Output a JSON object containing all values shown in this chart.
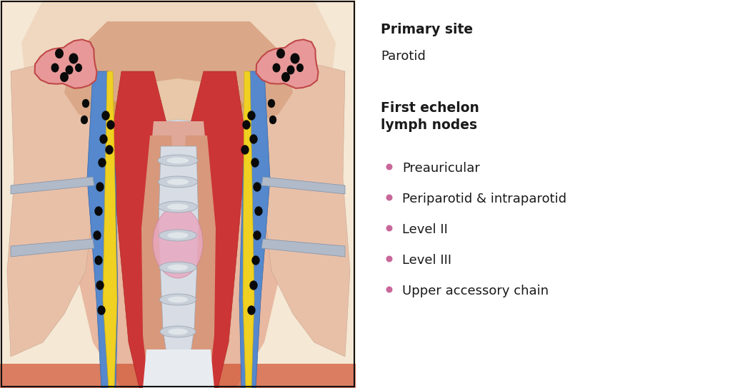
{
  "title_primary": "Primary site",
  "subtitle_primary": "Parotid",
  "title_nodes": "First echelon\nlymph nodes",
  "bullet_items": [
    "Preauricular",
    "Periparotid & intraparotid",
    "Level II",
    "Level III",
    "Upper accessory chain"
  ],
  "bullet_color": "#c9679a",
  "text_color": "#1a1a1a",
  "background_color": "#ffffff",
  "title_fontsize": 13.5,
  "body_fontsize": 13,
  "bullet_fontsize": 13,
  "panel_split": 0.488,
  "border_color": "#111111"
}
